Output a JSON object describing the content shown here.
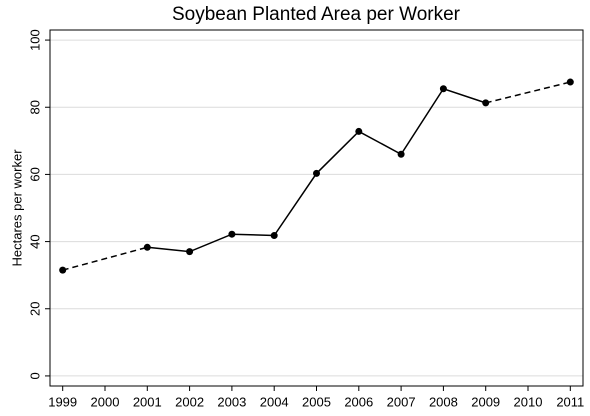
{
  "chart_data": {
    "type": "line",
    "title": "Soybean Planted Area per Worker",
    "y_label": "Hectares per worker",
    "x": [
      1999,
      2000,
      2001,
      2002,
      2003,
      2004,
      2005,
      2006,
      2007,
      2008,
      2009,
      2010,
      2011
    ],
    "values": [
      31.5,
      null,
      38.3,
      37,
      42.2,
      41.8,
      60.3,
      72.8,
      66,
      85.5,
      81.3,
      null,
      87.5
    ],
    "color": "#000000",
    "gap_style": "dashed",
    "xlim": [
      1998.7,
      2011.3
    ],
    "xticks": [
      1999,
      2000,
      2001,
      2002,
      2003,
      2004,
      2005,
      2006,
      2007,
      2008,
      2009,
      2010,
      2011
    ],
    "ylim": [
      -3,
      103
    ],
    "yticks": [
      0,
      20,
      40,
      60,
      80,
      100
    ],
    "grid": true
  }
}
